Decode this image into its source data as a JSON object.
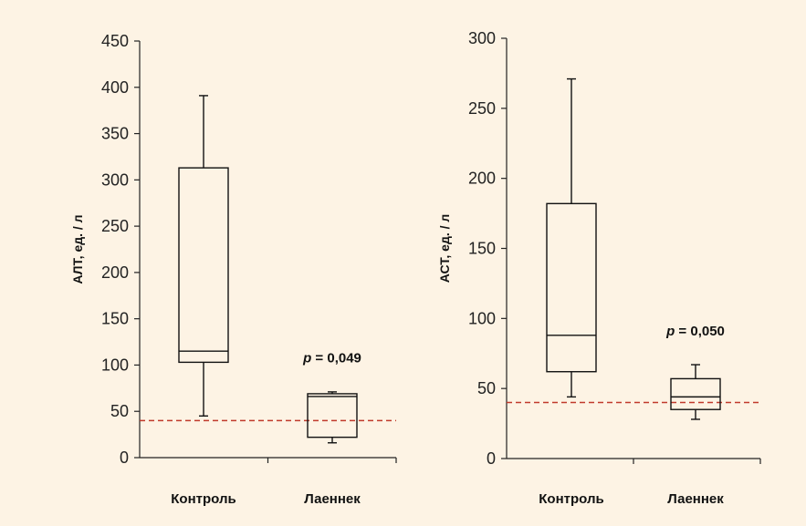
{
  "chart_data": [
    {
      "type": "boxplot",
      "ylabel": "АЛТ, ед. / л",
      "ylim": [
        0,
        450
      ],
      "yticks": [
        0,
        50,
        100,
        150,
        200,
        250,
        300,
        350,
        400,
        450
      ],
      "categories": [
        "Контроль",
        "Лаеннек"
      ],
      "boxes": [
        {
          "category": "Контроль",
          "whisker_low": 45,
          "q1": 103,
          "median": 115,
          "q3": 313,
          "whisker_high": 391
        },
        {
          "category": "Лаеннек",
          "whisker_low": 16,
          "q1": 22,
          "median": 66,
          "q3": 69,
          "whisker_high": 71
        }
      ],
      "reference_line": {
        "y": 40,
        "color": "#c0392b",
        "style": "dashed"
      },
      "annotation": {
        "text": "p = 0,049",
        "p_symbol": "p",
        "p_value": " = 0,049",
        "category": "Лаеннек",
        "y": 103
      },
      "grid": false
    },
    {
      "type": "boxplot",
      "ylabel": "АСТ, ед. / л",
      "ylim": [
        0,
        300
      ],
      "yticks": [
        0,
        50,
        100,
        150,
        200,
        250,
        300
      ],
      "categories": [
        "Контроль",
        "Лаеннек"
      ],
      "boxes": [
        {
          "category": "Контроль",
          "whisker_low": 44,
          "q1": 62,
          "median": 88,
          "q3": 182,
          "whisker_high": 271
        },
        {
          "category": "Лаеннек",
          "whisker_low": 28,
          "q1": 35,
          "median": 44,
          "q3": 57,
          "whisker_high": 67
        }
      ],
      "reference_line": {
        "y": 40,
        "color": "#c0392b",
        "style": "dashed"
      },
      "annotation": {
        "text": "p = 0,050",
        "p_symbol": "p",
        "p_value": " = 0,050",
        "category": "Лаеннек",
        "y": 88
      },
      "grid": false
    }
  ]
}
